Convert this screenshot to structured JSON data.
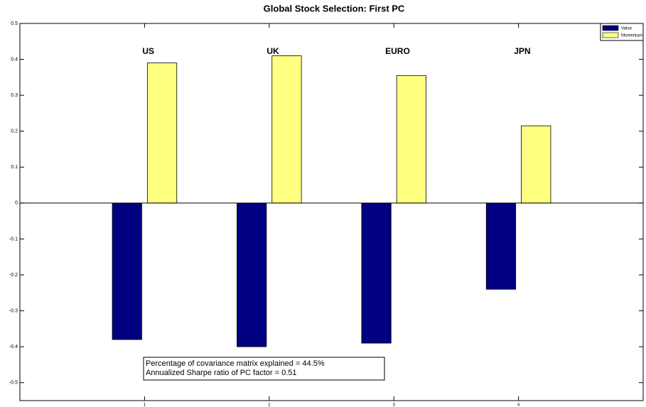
{
  "chart_data": {
    "type": "bar",
    "title": "Global Stock Selection:  First PC",
    "x": [
      1,
      2,
      3,
      4
    ],
    "group_labels": [
      "US",
      "UK",
      "EURO",
      "JPN"
    ],
    "series": [
      {
        "name": "Value",
        "color": "#000080",
        "values": [
          -0.38,
          -0.4,
          -0.39,
          -0.24
        ]
      },
      {
        "name": "Momentum",
        "color": "#ffff80",
        "values": [
          0.39,
          0.41,
          0.355,
          0.215
        ]
      }
    ],
    "xlim": [
      0,
      5
    ],
    "xticks": [
      1,
      2,
      3,
      4
    ],
    "ylim": [
      -0.55,
      0.5
    ],
    "yticks": [
      -0.5,
      -0.4,
      -0.3,
      -0.2,
      -0.1,
      0,
      0.1,
      0.2,
      0.3,
      0.4,
      0.5
    ],
    "grid": false,
    "legend": "upper right",
    "annotations": [
      "Percentage of covariance matrix explained = 44.5%",
      "Annualized Sharpe ratio of PC factor = 0.51"
    ]
  }
}
